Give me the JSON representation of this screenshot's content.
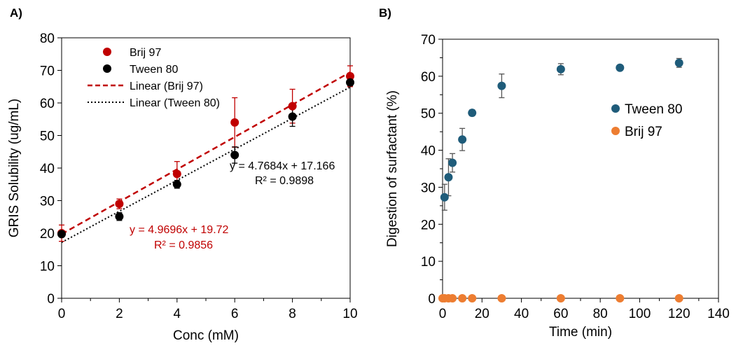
{
  "chart_data": [
    {
      "type": "scatter",
      "panel_label": "A)",
      "xlabel": "Conc (mM)",
      "ylabel": "GRIS Solubility  (ug/mL)",
      "xlim": [
        0,
        10
      ],
      "ylim": [
        0,
        80
      ],
      "x_ticks": [
        0,
        2,
        4,
        6,
        8,
        10
      ],
      "y_ticks": [
        0,
        10,
        20,
        30,
        40,
        50,
        60,
        70,
        80
      ],
      "grid": false,
      "legend_position": "top-left",
      "series": [
        {
          "name": "Brij 97",
          "color": "#c00000",
          "x": [
            0,
            2,
            4,
            6,
            8,
            10
          ],
          "y": [
            20,
            29,
            38.2,
            54,
            59,
            68.2
          ],
          "error": [
            2.5,
            1.5,
            3.8,
            7.6,
            5.2,
            3.2
          ]
        },
        {
          "name": "Tween 80",
          "color": "#000000",
          "x": [
            0,
            2,
            4,
            6,
            8,
            10
          ],
          "y": [
            19.7,
            25.1,
            35,
            44,
            55.8,
            66.3
          ],
          "error": [
            0.8,
            1.2,
            1.2,
            2.5,
            3,
            1
          ]
        }
      ],
      "trendlines": [
        {
          "name": "Linear (Brij 97)",
          "color": "#c00000",
          "style": "dashed",
          "slope": 4.9696,
          "intercept": 19.72,
          "equation": "y = 4.9696x + 19.72",
          "r2": "R² = 0.9856"
        },
        {
          "name": "Linear (Tween 80)",
          "color": "#000000",
          "style": "dotted",
          "slope": 4.7684,
          "intercept": 17.166,
          "equation": "y = 4.7684x + 17.166",
          "r2": "R² = 0.9898"
        }
      ]
    },
    {
      "type": "scatter",
      "panel_label": "B)",
      "xlabel": "Time (min)",
      "ylabel": "Digestion of surfactant (%)",
      "xlim": [
        0,
        140
      ],
      "ylim": [
        0,
        70
      ],
      "x_ticks": [
        0,
        20,
        40,
        60,
        80,
        100,
        120,
        140
      ],
      "y_ticks": [
        0,
        10,
        20,
        30,
        40,
        50,
        60,
        70
      ],
      "grid": false,
      "legend_position": "right",
      "series": [
        {
          "name": "Tween 80",
          "color": "#1f5c7a",
          "x": [
            1,
            3,
            5,
            10,
            15,
            30,
            60,
            90,
            120
          ],
          "y": [
            27.3,
            32.7,
            36.6,
            42.9,
            50.1,
            57.4,
            61.9,
            62.3,
            63.6
          ],
          "error": [
            3.5,
            5,
            2.5,
            3,
            0.8,
            3.2,
            1.5,
            0,
            1.2
          ]
        },
        {
          "name": "Brij 97",
          "color": "#ed7d31",
          "x": [
            0,
            1,
            3,
            5,
            10,
            15,
            30,
            60,
            90,
            120
          ],
          "y": [
            0,
            0,
            0,
            0,
            0,
            0,
            0,
            0,
            0,
            0
          ],
          "error": [
            0,
            0,
            0,
            0,
            0,
            0,
            0,
            0,
            0,
            0
          ]
        }
      ]
    }
  ]
}
